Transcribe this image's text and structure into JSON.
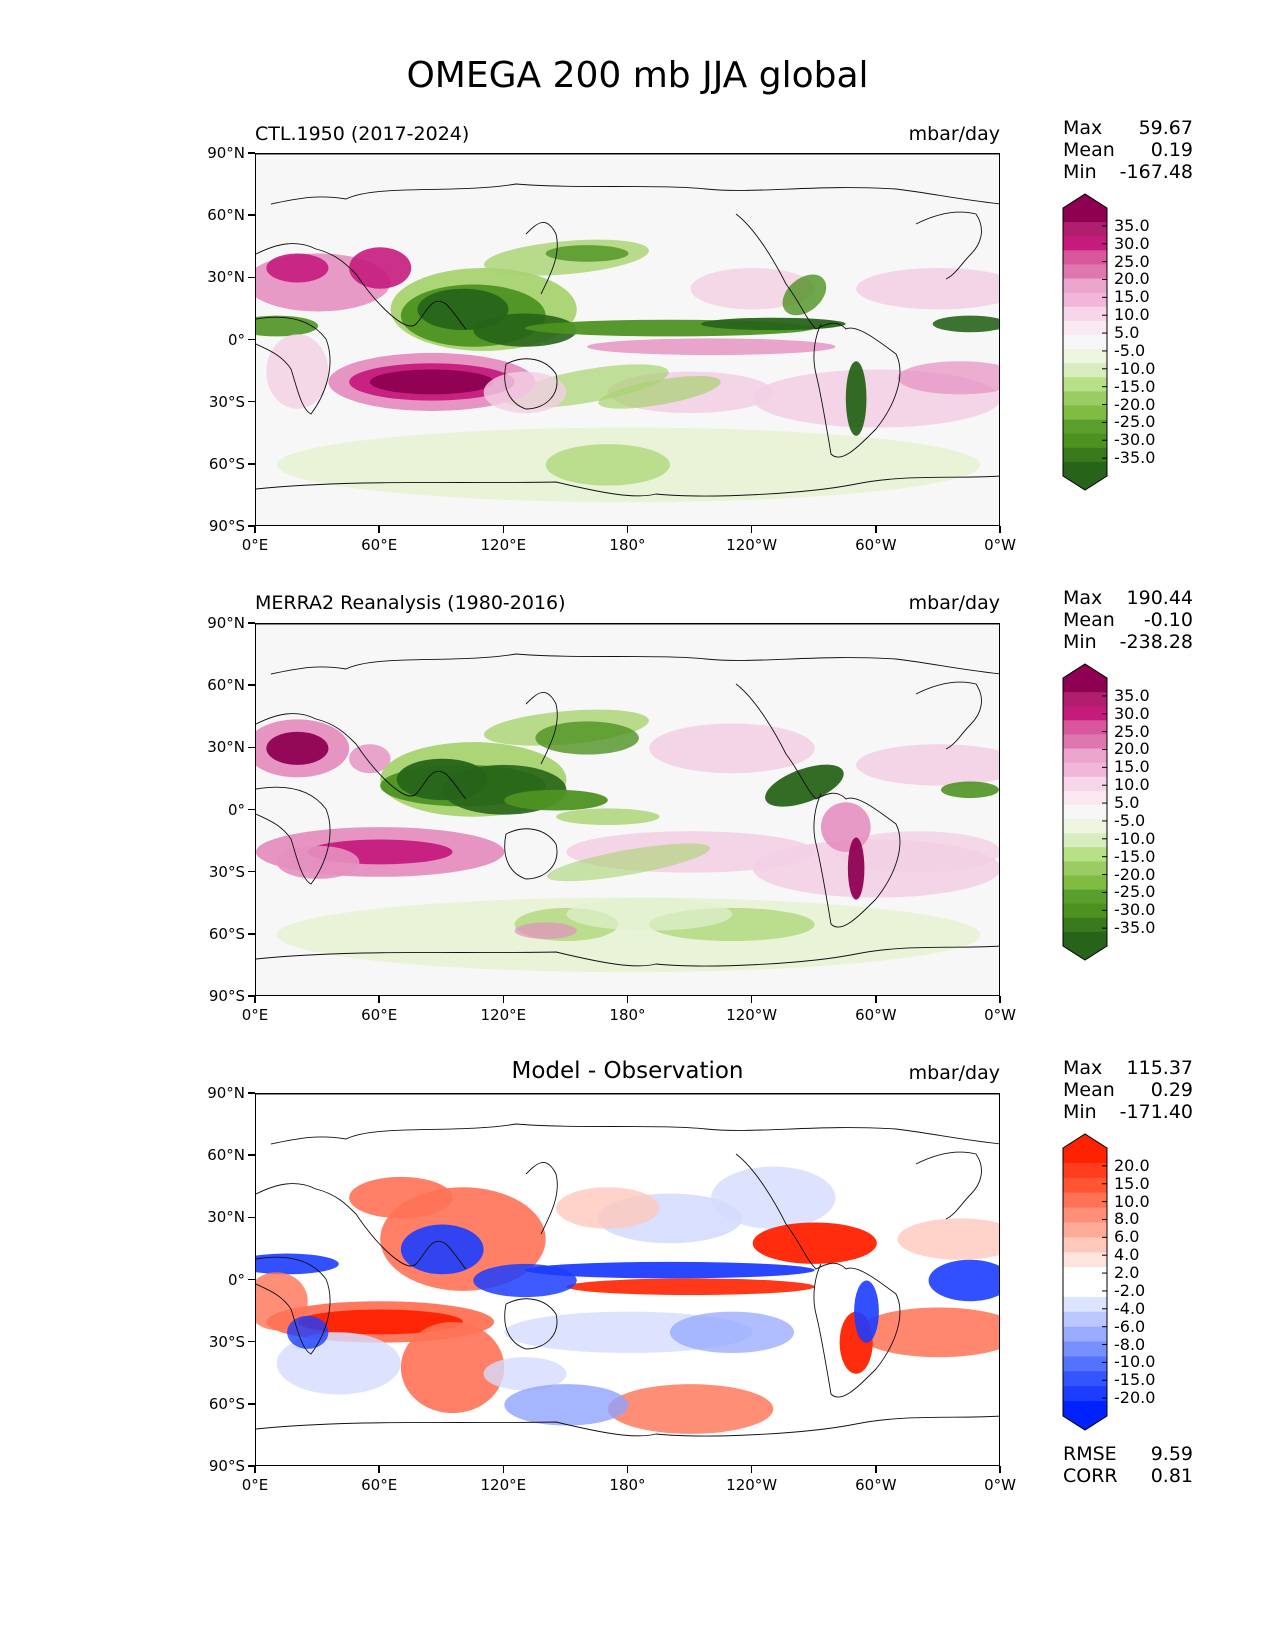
{
  "figure": {
    "title": "OMEGA 200 mb JJA global"
  },
  "axes": {
    "lat_labels": [
      "90°N",
      "60°N",
      "30°N",
      "0°",
      "30°S",
      "60°S",
      "90°S"
    ],
    "lon_labels": [
      "0°E",
      "60°E",
      "120°E",
      "180°",
      "120°W",
      "60°W",
      "0°W"
    ]
  },
  "panels": [
    {
      "title": "CTL.1950 (2017-2024)",
      "units": "mbar/day",
      "stats": {
        "max_label": "Max",
        "max": "59.67",
        "mean_label": "Mean",
        "mean": "0.19",
        "min_label": "Min",
        "min": "-167.48"
      },
      "colorbar": {
        "labels": [
          "35.0",
          "30.0",
          "25.0",
          "20.0",
          "15.0",
          "10.0",
          "5.0",
          "-5.0",
          "-10.0",
          "-15.0",
          "-20.0",
          "-25.0",
          "-30.0",
          "-35.0"
        ],
        "colors": [
          "#8e0152",
          "#b01e6d",
          "#c51b7d",
          "#d9589b",
          "#de77ae",
          "#eba4cc",
          "#f1b6da",
          "#f7d6ea",
          "#fbe9f2",
          "#f7f7f7",
          "#eef6e0",
          "#d8ecbf",
          "#b8e186",
          "#9acc63",
          "#7fbc41",
          "#5a9f2e",
          "#4d9221",
          "#3b7a1c",
          "#276419"
        ],
        "top_cap": "#8e0152",
        "bottom_cap": "#276419"
      },
      "fields": "model"
    },
    {
      "title": "MERRA2 Reanalysis (1980-2016)",
      "units": "mbar/day",
      "stats": {
        "max_label": "Max",
        "max": "190.44",
        "mean_label": "Mean",
        "mean": "-0.10",
        "min_label": "Min",
        "min": "-238.28"
      },
      "colorbar": {
        "labels": [
          "35.0",
          "30.0",
          "25.0",
          "20.0",
          "15.0",
          "10.0",
          "5.0",
          "-5.0",
          "-10.0",
          "-15.0",
          "-20.0",
          "-25.0",
          "-30.0",
          "-35.0"
        ],
        "colors": [
          "#8e0152",
          "#b01e6d",
          "#c51b7d",
          "#d9589b",
          "#de77ae",
          "#eba4cc",
          "#f1b6da",
          "#f7d6ea",
          "#fbe9f2",
          "#f7f7f7",
          "#eef6e0",
          "#d8ecbf",
          "#b8e186",
          "#9acc63",
          "#7fbc41",
          "#5a9f2e",
          "#4d9221",
          "#3b7a1c",
          "#276419"
        ],
        "top_cap": "#8e0152",
        "bottom_cap": "#276419"
      },
      "fields": "obs"
    },
    {
      "title_center": "Model - Observation",
      "units": "mbar/day",
      "stats": {
        "max_label": "Max",
        "max": "115.37",
        "mean_label": "Mean",
        "mean": "0.29",
        "min_label": "Min",
        "min": "-171.40"
      },
      "colorbar": {
        "labels": [
          "20.0",
          "15.0",
          "10.0",
          "8.0",
          "6.0",
          "4.0",
          "2.0",
          "-2.0",
          "-4.0",
          "-6.0",
          "-8.0",
          "-10.0",
          "-15.0",
          "-20.0"
        ],
        "colors": [
          "#ff2200",
          "#ff3d1c",
          "#ff5533",
          "#ff7255",
          "#ff8f77",
          "#ffab99",
          "#ffc8bb",
          "#ffe4dd",
          "#ffffff",
          "#ffffff",
          "#dde4ff",
          "#bbc8ff",
          "#99abff",
          "#778fff",
          "#5572ff",
          "#3355ff",
          "#1c3dff",
          "#0022ff"
        ],
        "top_cap": "#ff2200",
        "bottom_cap": "#0022ff"
      },
      "metrics": {
        "rmse_label": "RMSE",
        "rmse": "9.59",
        "corr_label": "CORR",
        "corr": "0.81"
      },
      "fields": "diff"
    }
  ],
  "chart_data": [
    {
      "type": "heatmap",
      "title": "CTL.1950 (2017-2024)",
      "units": "mbar/day",
      "xlabel": "",
      "ylabel": "",
      "xlim": [
        0,
        360
      ],
      "ylim": [
        -90,
        90
      ],
      "max": 59.67,
      "mean": 0.19,
      "min": -167.48,
      "regions": [
        {
          "lon": [
            75,
            140
          ],
          "lat": [
            0,
            35
          ],
          "value": -35
        },
        {
          "lon": [
            150,
            250
          ],
          "lat": [
            3,
            10
          ],
          "value": -30
        },
        {
          "lon": [
            0,
            25
          ],
          "lat": [
            3,
            12
          ],
          "value": -30
        },
        {
          "lon": [
            55,
            115
          ],
          "lat": [
            -30,
            -15
          ],
          "value": 35
        },
        {
          "lon": [
            5,
            55
          ],
          "lat": [
            20,
            40
          ],
          "value": 25
        },
        {
          "lon": [
            285,
            295
          ],
          "lat": [
            -40,
            -10
          ],
          "value": -35
        },
        {
          "lon": [
            170,
            260
          ],
          "lat": [
            -12,
            -3
          ],
          "value": 15
        }
      ]
    },
    {
      "type": "heatmap",
      "title": "MERRA2 Reanalysis (1980-2016)",
      "units": "mbar/day",
      "xlabel": "",
      "ylabel": "",
      "xlim": [
        0,
        360
      ],
      "ylim": [
        -90,
        90
      ],
      "max": 190.44,
      "mean": -0.1,
      "min": -238.28,
      "regions": [
        {
          "lon": [
            70,
            150
          ],
          "lat": [
            0,
            35
          ],
          "value": -35
        },
        {
          "lon": [
            250,
            285
          ],
          "lat": [
            5,
            20
          ],
          "value": -35
        },
        {
          "lon": [
            5,
            40
          ],
          "lat": [
            25,
            40
          ],
          "value": 35
        },
        {
          "lon": [
            30,
            110
          ],
          "lat": [
            -30,
            -15
          ],
          "value": 25
        },
        {
          "lon": [
            280,
            290
          ],
          "lat": [
            -40,
            -10
          ],
          "value": 30
        }
      ]
    },
    {
      "type": "heatmap",
      "title": "Model - Observation",
      "units": "mbar/day",
      "xlabel": "",
      "ylabel": "",
      "xlim": [
        0,
        360
      ],
      "ylim": [
        -90,
        90
      ],
      "max": 115.37,
      "mean": 0.29,
      "min": -171.4,
      "rmse": 9.59,
      "corr": 0.81,
      "regions": [
        {
          "lon": [
            150,
            260
          ],
          "lat": [
            3,
            10
          ],
          "value": -20
        },
        {
          "lon": [
            170,
            260
          ],
          "lat": [
            -10,
            -3
          ],
          "value": 20
        },
        {
          "lon": [
            40,
            110
          ],
          "lat": [
            -30,
            -15
          ],
          "value": 20
        },
        {
          "lon": [
            250,
            300
          ],
          "lat": [
            10,
            25
          ],
          "value": 20
        },
        {
          "lon": [
            70,
            110
          ],
          "lat": [
            0,
            30
          ],
          "value": -20
        },
        {
          "lon": [
            0,
            30
          ],
          "lat": [
            3,
            12
          ],
          "value": -20
        }
      ]
    }
  ]
}
